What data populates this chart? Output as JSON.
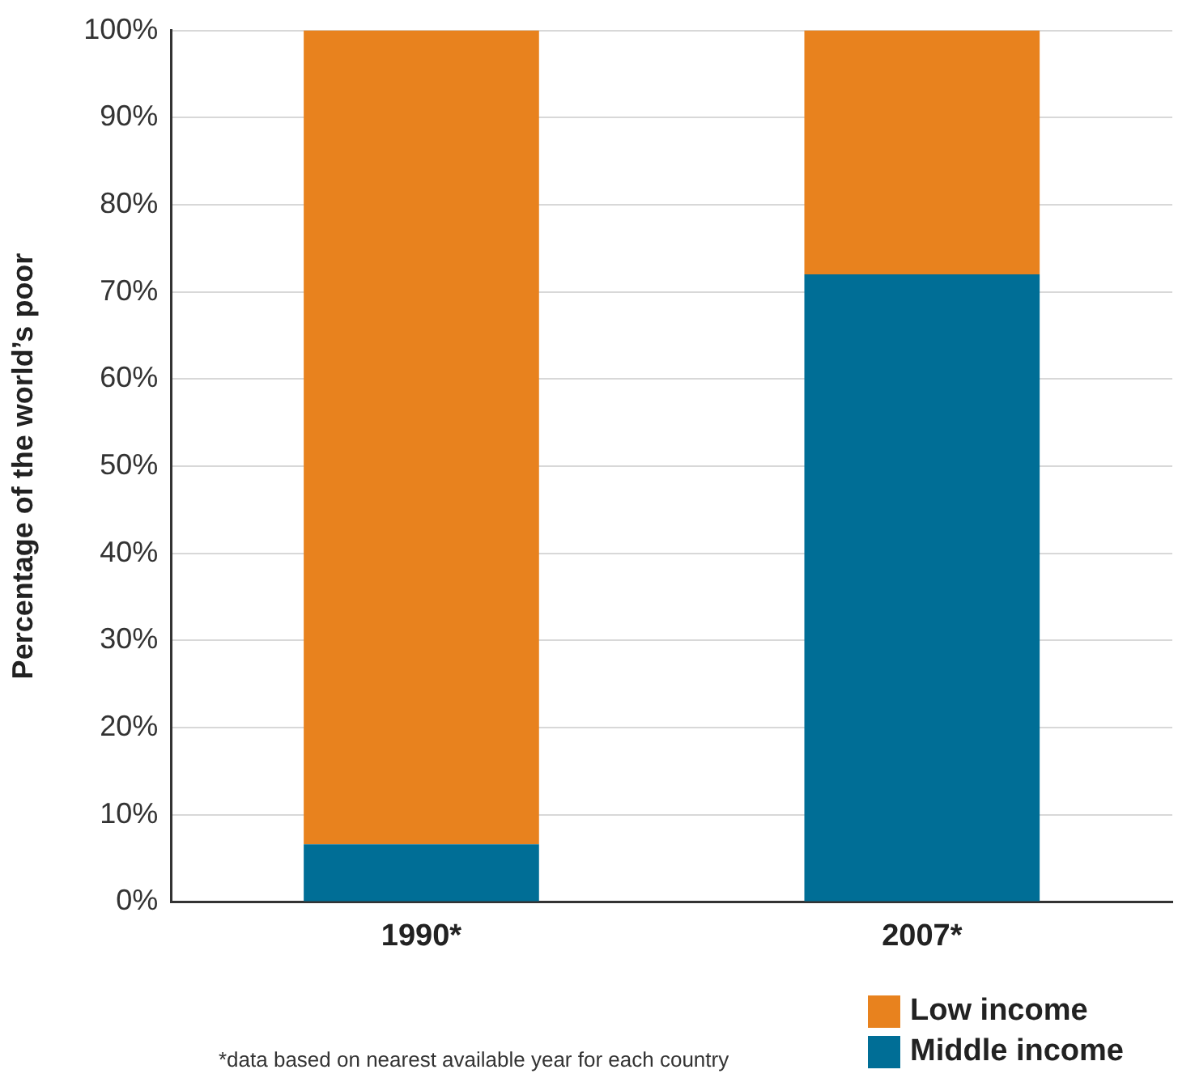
{
  "chart_data": {
    "type": "bar",
    "stacked": true,
    "ylabel": "Percentage of the world’s poor",
    "categories": [
      "1990*",
      "2007*"
    ],
    "series": [
      {
        "name": "Middle income",
        "color": "#006e96",
        "values": [
          6.6,
          72
        ]
      },
      {
        "name": "Low income",
        "color": "#e8821e",
        "values": [
          93.4,
          28
        ]
      }
    ],
    "ylim": [
      0,
      100
    ],
    "yticks": [
      {
        "value": 0,
        "label": "0%"
      },
      {
        "value": 10,
        "label": "10%"
      },
      {
        "value": 20,
        "label": "20%"
      },
      {
        "value": 30,
        "label": "30%"
      },
      {
        "value": 40,
        "label": "40%"
      },
      {
        "value": 50,
        "label": "50%"
      },
      {
        "value": 60,
        "label": "60%"
      },
      {
        "value": 70,
        "label": "70%"
      },
      {
        "value": 80,
        "label": "80%"
      },
      {
        "value": 90,
        "label": "90%"
      },
      {
        "value": 100,
        "label": "100%"
      }
    ],
    "grid": "y",
    "legend": "bottom right",
    "annotations": [
      "*data based on nearest available year for each country"
    ]
  }
}
